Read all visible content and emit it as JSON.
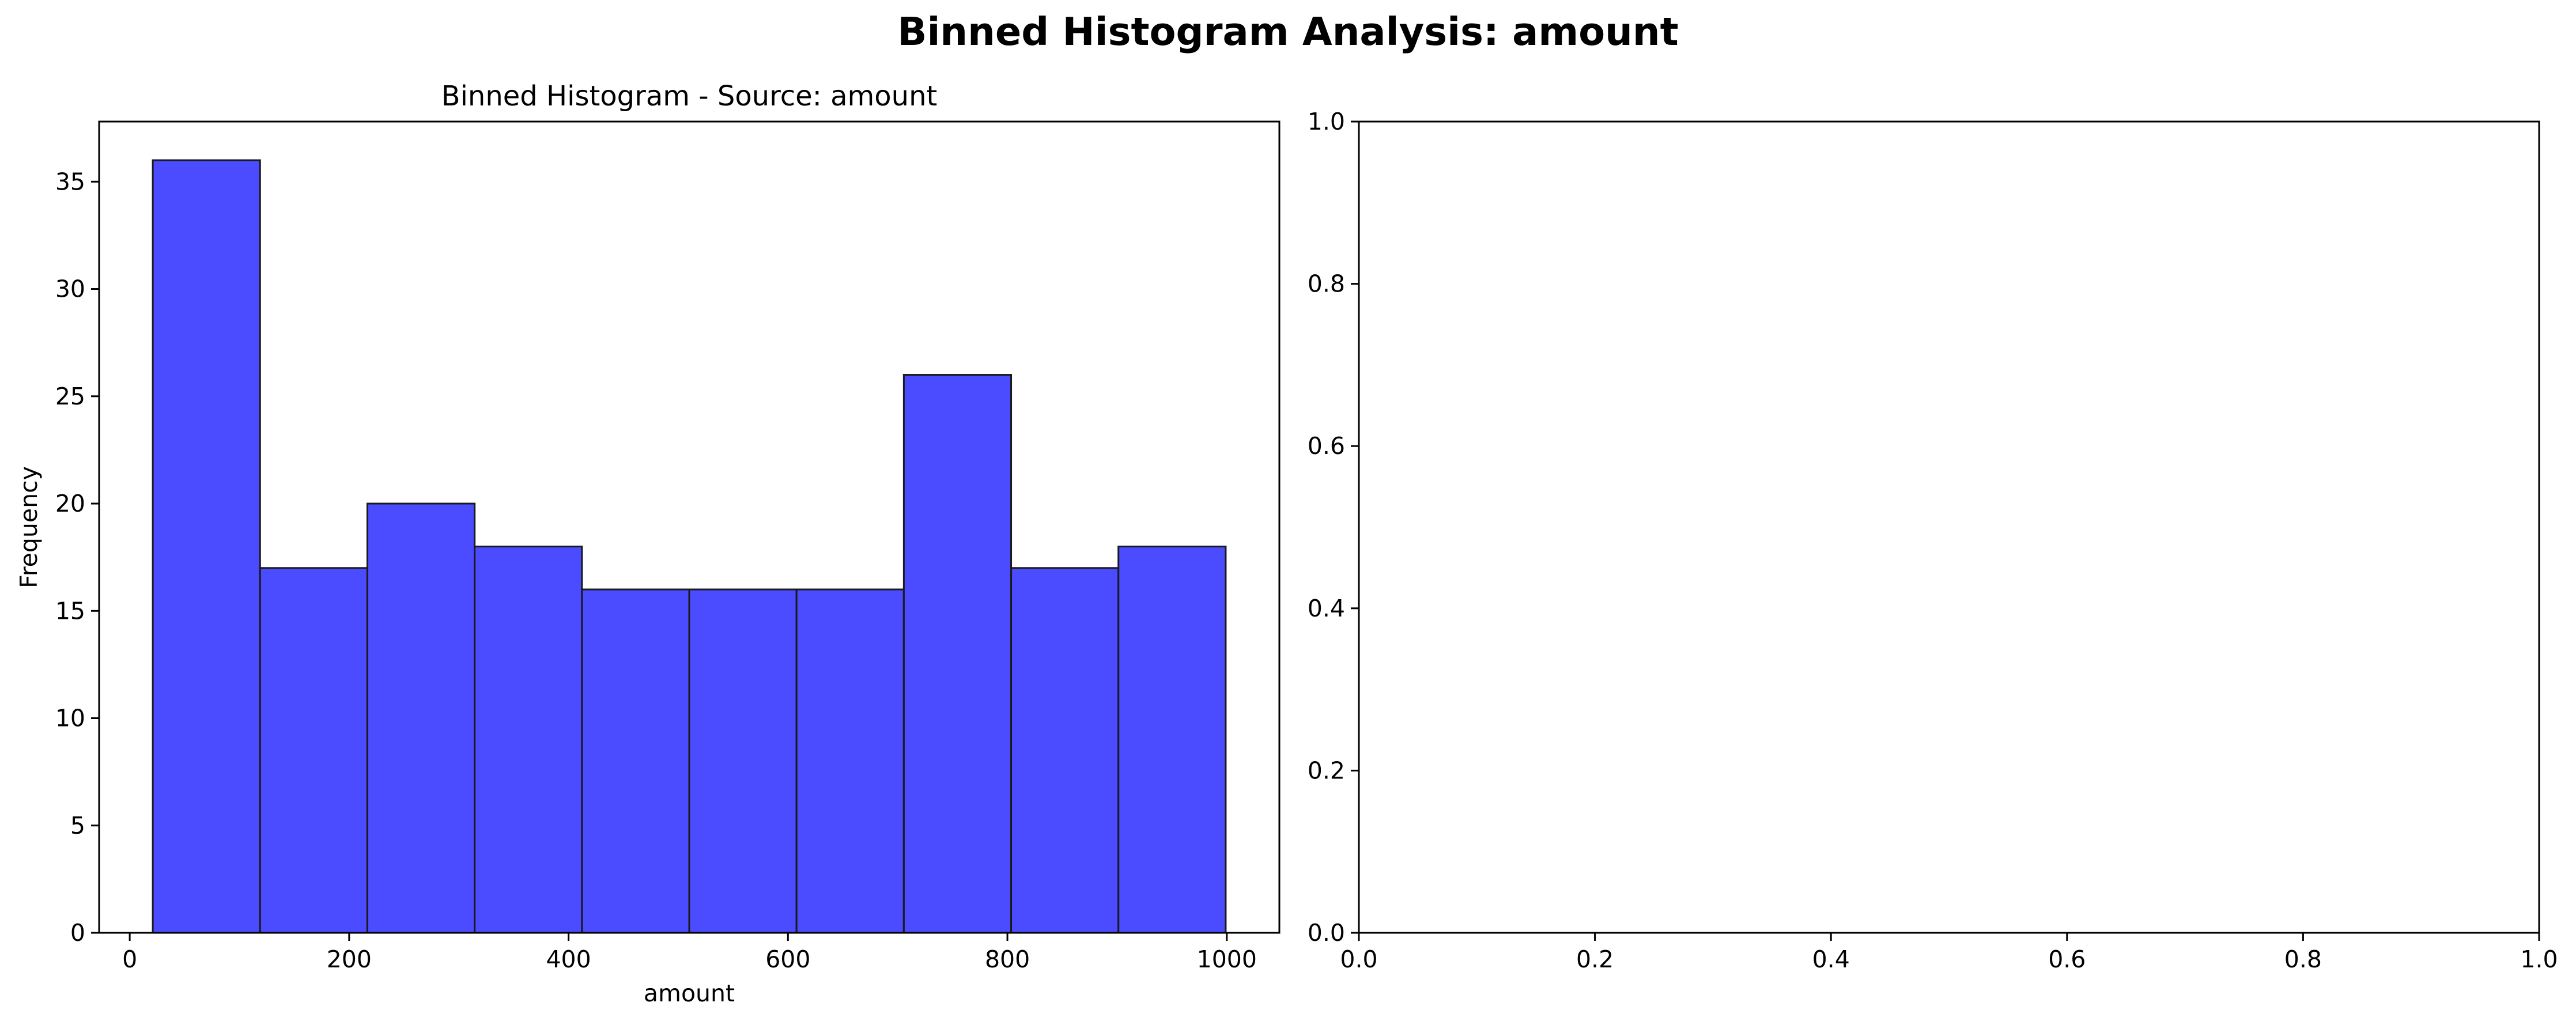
{
  "figure": {
    "title": "Binned Histogram Analysis: amount"
  },
  "chart_data": [
    {
      "type": "bar",
      "subtype": "histogram",
      "title": "Binned Histogram - Source: amount",
      "xlabel": "amount",
      "ylabel": "Frequency",
      "bin_edges": [
        21,
        118.8,
        216.6,
        314.4,
        412.2,
        510,
        607.8,
        705.6,
        803.4,
        901.2,
        999
      ],
      "values": [
        36,
        17,
        20,
        18,
        16,
        16,
        16,
        26,
        17,
        18
      ],
      "xlim": [
        -27.9,
        1047.9
      ],
      "ylim": [
        0,
        37.8
      ],
      "xticks": [
        0,
        200,
        400,
        600,
        800,
        1000
      ],
      "xtick_labels": [
        "0",
        "200",
        "400",
        "600",
        "800",
        "1000"
      ],
      "yticks": [
        0,
        5,
        10,
        15,
        20,
        25,
        30,
        35
      ],
      "ytick_labels": [
        "0",
        "5",
        "10",
        "15",
        "20",
        "25",
        "30",
        "35"
      ],
      "bar_color": "#4B4BFF",
      "edge_color": "#1a1a1a",
      "grid": false,
      "legend": "none"
    },
    {
      "type": "scatter",
      "title": "",
      "xlabel": "",
      "ylabel": "",
      "series": [],
      "xlim": [
        0,
        1
      ],
      "ylim": [
        0,
        1
      ],
      "xticks": [
        0,
        0.2,
        0.4,
        0.6,
        0.8,
        1
      ],
      "xtick_labels": [
        "0.0",
        "0.2",
        "0.4",
        "0.6",
        "0.8",
        "1.0"
      ],
      "yticks": [
        0,
        0.2,
        0.4,
        0.6,
        0.8,
        1
      ],
      "ytick_labels": [
        "0.0",
        "0.2",
        "0.4",
        "0.6",
        "0.8",
        "1.0"
      ],
      "grid": false,
      "legend": "none"
    }
  ]
}
